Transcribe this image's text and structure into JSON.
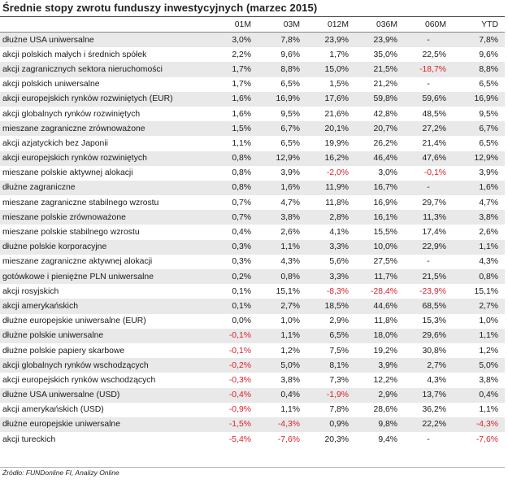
{
  "chart_data": {
    "type": "table",
    "title": "Średnie stopy zwrotu funduszy inwestycyjnych (marzec 2015)",
    "columns": [
      "",
      "01M",
      "03M",
      "012M",
      "036M",
      "060M",
      "YTD"
    ],
    "rows": [
      {
        "name": "dłużne USA uniwersalne",
        "values": [
          "3,0%",
          "7,8%",
          "23,9%",
          "23,9%",
          "-",
          "7,8%"
        ]
      },
      {
        "name": "akcji polskich małych i średnich spółek",
        "values": [
          "2,2%",
          "9,6%",
          "1,7%",
          "35,0%",
          "22,5%",
          "9,6%"
        ]
      },
      {
        "name": "akcji zagranicznych sektora nieruchomości",
        "values": [
          "1,7%",
          "8,8%",
          "15,0%",
          "21,5%",
          "-18,7%",
          "8,8%"
        ]
      },
      {
        "name": "akcji polskich uniwersalne",
        "values": [
          "1,7%",
          "6,5%",
          "1,5%",
          "21,2%",
          "-",
          "6,5%"
        ]
      },
      {
        "name": "akcji europejskich rynków rozwiniętych (EUR)",
        "values": [
          "1,6%",
          "16,9%",
          "17,6%",
          "59,8%",
          "59,6%",
          "16,9%"
        ]
      },
      {
        "name": "akcji globalnych rynków rozwiniętych",
        "values": [
          "1,6%",
          "9,5%",
          "21,6%",
          "42,8%",
          "48,5%",
          "9,5%"
        ]
      },
      {
        "name": "mieszane zagraniczne zrównoważone",
        "values": [
          "1,5%",
          "6,7%",
          "20,1%",
          "20,7%",
          "27,2%",
          "6,7%"
        ]
      },
      {
        "name": "akcji azjatyckich bez Japonii",
        "values": [
          "1,1%",
          "6,5%",
          "19,9%",
          "26,2%",
          "21,4%",
          "6,5%"
        ]
      },
      {
        "name": "akcji europejskich rynków rozwiniętych",
        "values": [
          "0,8%",
          "12,9%",
          "16,2%",
          "46,4%",
          "47,6%",
          "12,9%"
        ]
      },
      {
        "name": "mieszane polskie aktywnej alokacji",
        "values": [
          "0,8%",
          "3,9%",
          "-2,0%",
          "3,0%",
          "-0,1%",
          "3,9%"
        ]
      },
      {
        "name": "dłużne zagraniczne",
        "values": [
          "0,8%",
          "1,6%",
          "11,9%",
          "16,7%",
          "-",
          "1,6%"
        ]
      },
      {
        "name": "mieszane zagraniczne stabilnego wzrostu",
        "values": [
          "0,7%",
          "4,7%",
          "11,8%",
          "16,9%",
          "29,7%",
          "4,7%"
        ]
      },
      {
        "name": "mieszane polskie zrównoważone",
        "values": [
          "0,7%",
          "3,8%",
          "2,8%",
          "16,1%",
          "11,3%",
          "3,8%"
        ]
      },
      {
        "name": "mieszane polskie stabilnego wzrostu",
        "values": [
          "0,4%",
          "2,6%",
          "4,1%",
          "15,5%",
          "17,4%",
          "2,6%"
        ]
      },
      {
        "name": "dłużne polskie korporacyjne",
        "values": [
          "0,3%",
          "1,1%",
          "3,3%",
          "10,0%",
          "22,9%",
          "1,1%"
        ]
      },
      {
        "name": "mieszane zagraniczne aktywnej alokacji",
        "values": [
          "0,3%",
          "4,3%",
          "5,6%",
          "27,5%",
          "-",
          "4,3%"
        ]
      },
      {
        "name": "gotówkowe i pieniężne PLN uniwersalne",
        "values": [
          "0,2%",
          "0,8%",
          "3,3%",
          "11,7%",
          "21,5%",
          "0,8%"
        ]
      },
      {
        "name": "akcji rosyjskich",
        "values": [
          "0,1%",
          "15,1%",
          "-8,3%",
          "-28,4%",
          "-23,9%",
          "15,1%"
        ]
      },
      {
        "name": "akcji amerykańskich",
        "values": [
          "0,1%",
          "2,7%",
          "18,5%",
          "44,6%",
          "68,5%",
          "2,7%"
        ]
      },
      {
        "name": "dłużne europejskie uniwersalne (EUR)",
        "values": [
          "0,0%",
          "1,0%",
          "2,9%",
          "11,8%",
          "15,3%",
          "1,0%"
        ]
      },
      {
        "name": "dłużne polskie uniwersalne",
        "values": [
          "-0,1%",
          "1,1%",
          "6,5%",
          "18,0%",
          "29,6%",
          "1,1%"
        ]
      },
      {
        "name": "dłużne polskie papiery skarbowe",
        "values": [
          "-0,1%",
          "1,2%",
          "7,5%",
          "19,2%",
          "30,8%",
          "1,2%"
        ]
      },
      {
        "name": "akcji globalnych rynków wschodzących",
        "values": [
          "-0,2%",
          "5,0%",
          "8,1%",
          "3,9%",
          "2,7%",
          "5,0%"
        ]
      },
      {
        "name": "akcji europejskich rynków wschodzących",
        "values": [
          "-0,3%",
          "3,8%",
          "7,3%",
          "12,2%",
          "4,3%",
          "3,8%"
        ]
      },
      {
        "name": "dłużne USA uniwersalne (USD)",
        "values": [
          "-0,4%",
          "0,4%",
          "-1,9%",
          "2,9%",
          "13,7%",
          "0,4%"
        ]
      },
      {
        "name": "akcji amerykańskich (USD)",
        "values": [
          "-0,9%",
          "1,1%",
          "7,8%",
          "28,6%",
          "36,2%",
          "1,1%"
        ]
      },
      {
        "name": "dłużne europejskie uniwersalne",
        "values": [
          "-1,5%",
          "-4,3%",
          "0,9%",
          "9,8%",
          "22,2%",
          "-4,3%"
        ]
      },
      {
        "name": "akcji tureckich",
        "values": [
          "-5,4%",
          "-7,6%",
          "20,3%",
          "9,4%",
          "-",
          "-7,6%"
        ]
      }
    ],
    "source": "Źródło: FUNDonline FI, Analizy Online",
    "colors": {
      "negative": "#d9232e",
      "row_shade": "#e9e9e9",
      "text": "#1a1a1a"
    }
  }
}
